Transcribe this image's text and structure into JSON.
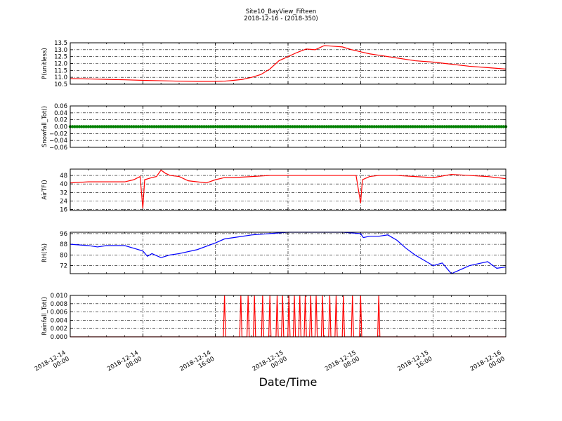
{
  "chart_data": {
    "type": "line",
    "title_line1": "Site10_BayView_Fifteen",
    "title_line2": "2018-12-16 - (2018-350)",
    "xlabel": "Date/Time",
    "x_range": [
      "2018-12-14 00:00",
      "2018-12-16 00:00"
    ],
    "x_ticks": [
      {
        "line1": "2018-12-14",
        "line2": "00:00",
        "hours": 0
      },
      {
        "line1": "2018-12-14",
        "line2": "08:00",
        "hours": 8
      },
      {
        "line1": "2018-12-14",
        "line2": "16:00",
        "hours": 16
      },
      {
        "line1": "2018-12-15",
        "line2": "00:00",
        "hours": 24
      },
      {
        "line1": "2018-12-15",
        "line2": "08:00",
        "hours": 32
      },
      {
        "line1": "2018-12-15",
        "line2": "16:00",
        "hours": 40
      },
      {
        "line1": "2018-12-16",
        "line2": "00:00",
        "hours": 48
      }
    ],
    "panels": [
      {
        "ylabel": "P(unitless)",
        "color": "#ff0000",
        "ylim": [
          10.5,
          13.5
        ],
        "yticks": [
          "10.5",
          "11.0",
          "11.5",
          "12.0",
          "12.5",
          "13.0",
          "13.5"
        ],
        "ytick_values": [
          10.5,
          11.0,
          11.5,
          12.0,
          12.5,
          13.0,
          13.5
        ],
        "x_hours": [
          0,
          2,
          4,
          6,
          8,
          10,
          12,
          14,
          16,
          17,
          18,
          19,
          20,
          21,
          22,
          23,
          24,
          25,
          26,
          27,
          28,
          29,
          30,
          31,
          32,
          33,
          34,
          36,
          38,
          40,
          42,
          44,
          46,
          48
        ],
        "y": [
          10.9,
          10.88,
          10.85,
          10.82,
          10.78,
          10.75,
          10.72,
          10.7,
          10.7,
          10.72,
          10.78,
          10.85,
          11.0,
          11.2,
          11.6,
          12.2,
          12.5,
          12.8,
          13.05,
          13.0,
          13.3,
          13.25,
          13.2,
          13.0,
          12.85,
          12.7,
          12.6,
          12.4,
          12.2,
          12.1,
          11.95,
          11.8,
          11.7,
          11.6
        ]
      },
      {
        "ylabel": "Snowfall_Tot()",
        "color": "#008000",
        "style": "dots",
        "ylim": [
          -0.06,
          0.06
        ],
        "yticks": [
          "−0.06",
          "−0.04",
          "−0.02",
          "0.00",
          "0.02",
          "0.04",
          "0.06"
        ],
        "ytick_values": [
          -0.06,
          -0.04,
          -0.02,
          0.0,
          0.02,
          0.04,
          0.06
        ],
        "x_hours": [
          0,
          48
        ],
        "y": [
          0,
          0
        ]
      },
      {
        "ylabel": "AirTF()",
        "color": "#ff0000",
        "ylim": [
          15,
          54
        ],
        "yticks": [
          "16",
          "24",
          "32",
          "40",
          "48"
        ],
        "ytick_values": [
          16,
          24,
          32,
          40,
          48
        ],
        "x_hours": [
          0,
          2,
          4,
          6,
          7,
          7.7,
          8,
          8.2,
          9,
          9.5,
          10,
          10.5,
          11,
          12,
          13,
          14,
          15,
          16,
          17,
          18,
          20,
          22,
          24,
          26,
          28,
          30,
          31.5,
          32,
          32.2,
          33,
          34,
          36,
          38,
          40,
          42,
          44,
          46,
          48
        ],
        "y": [
          41,
          42,
          42,
          42,
          44,
          47,
          17,
          44,
          46,
          47,
          53,
          50,
          48,
          47,
          43,
          42,
          41,
          44,
          46,
          46,
          47,
          48,
          48,
          48,
          48,
          48,
          48,
          22,
          44,
          47,
          48,
          48,
          47,
          46,
          49,
          48,
          47,
          45
        ]
      },
      {
        "ylabel": "RH(%)",
        "color": "#0000ff",
        "ylim": [
          66,
          97
        ],
        "yticks": [
          "72",
          "80",
          "88",
          "96"
        ],
        "ytick_values": [
          72,
          80,
          88,
          96
        ],
        "x_hours": [
          0,
          2,
          3,
          4,
          6,
          7,
          8,
          8.5,
          9,
          10,
          11,
          12,
          14,
          16,
          17,
          18,
          20,
          22,
          24,
          26,
          28,
          30,
          32,
          32.3,
          33,
          34,
          35,
          36,
          37,
          38,
          40,
          41,
          42,
          43,
          44,
          46,
          47,
          48
        ],
        "y": [
          88,
          87,
          86,
          87,
          87,
          85,
          83,
          79,
          81,
          78,
          80,
          81,
          84,
          89,
          92,
          93,
          95,
          96,
          97,
          97,
          97,
          97,
          96,
          93,
          94,
          94,
          95,
          91,
          85,
          80,
          72,
          74,
          66,
          69,
          72,
          75,
          70,
          71
        ]
      },
      {
        "ylabel": "Rainfall_Tot()",
        "color": "#ff0000",
        "ylim": [
          0,
          0.01
        ],
        "yticks": [
          "0.000",
          "0.002",
          "0.004",
          "0.006",
          "0.008",
          "0.010"
        ],
        "ytick_values": [
          0,
          0.002,
          0.004,
          0.006,
          0.008,
          0.01
        ],
        "spikes_hours": [
          17,
          18.8,
          19.6,
          20.3,
          21.2,
          22.0,
          22.8,
          23.4,
          24.1,
          24.7,
          25.3,
          25.9,
          26.5,
          27.1,
          27.8,
          28.6,
          29.3,
          30.1,
          31.1,
          32.0,
          34.0
        ],
        "spike_value": 0.01
      }
    ]
  }
}
